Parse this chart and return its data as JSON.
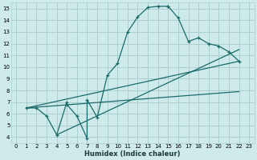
{
  "xlabel": "Humidex (Indice chaleur)",
  "bg_color": "#ceeaea",
  "grid_color": "#aacfcf",
  "line_color": "#1a6b6b",
  "xlim": [
    -0.5,
    23.5
  ],
  "ylim": [
    3.5,
    15.5
  ],
  "xticks": [
    0,
    1,
    2,
    3,
    4,
    5,
    6,
    7,
    8,
    9,
    10,
    11,
    12,
    13,
    14,
    15,
    16,
    17,
    18,
    19,
    20,
    21,
    22,
    23
  ],
  "yticks": [
    4,
    5,
    6,
    7,
    8,
    9,
    10,
    11,
    12,
    13,
    14,
    15
  ],
  "curve_x": [
    1,
    2,
    3,
    4,
    5,
    5,
    6,
    7,
    7,
    8,
    9,
    10,
    11,
    12,
    13,
    14,
    15,
    15,
    16,
    17,
    18,
    19,
    20,
    21,
    22
  ],
  "curve_y": [
    6.5,
    6.5,
    5.8,
    4.2,
    7.0,
    6.8,
    5.8,
    3.9,
    7.2,
    5.7,
    9.3,
    10.3,
    13.0,
    14.3,
    15.1,
    15.2,
    15.2,
    15.2,
    14.2,
    12.2,
    12.5,
    12.0,
    11.8,
    11.3,
    10.5
  ],
  "line1_x": [
    1,
    22
  ],
  "line1_y": [
    6.5,
    10.5
  ],
  "line2_x": [
    1,
    22
  ],
  "line2_y": [
    6.5,
    7.9
  ],
  "line3_x": [
    4,
    22
  ],
  "line3_y": [
    4.2,
    11.5
  ]
}
